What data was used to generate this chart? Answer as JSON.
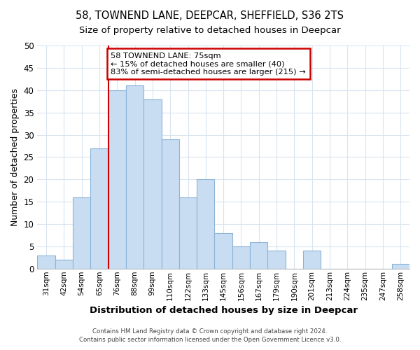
{
  "title": "58, TOWNEND LANE, DEEPCAR, SHEFFIELD, S36 2TS",
  "subtitle": "Size of property relative to detached houses in Deepcar",
  "xlabel": "Distribution of detached houses by size in Deepcar",
  "ylabel": "Number of detached properties",
  "bar_labels": [
    "31sqm",
    "42sqm",
    "54sqm",
    "65sqm",
    "76sqm",
    "88sqm",
    "99sqm",
    "110sqm",
    "122sqm",
    "133sqm",
    "145sqm",
    "156sqm",
    "167sqm",
    "179sqm",
    "190sqm",
    "201sqm",
    "213sqm",
    "224sqm",
    "235sqm",
    "247sqm",
    "258sqm"
  ],
  "bar_values": [
    3,
    2,
    16,
    27,
    40,
    41,
    38,
    29,
    16,
    20,
    8,
    5,
    6,
    4,
    0,
    4,
    0,
    0,
    0,
    0,
    1
  ],
  "bar_color": "#c9ddf2",
  "bar_edge_color": "#8ab4d8",
  "annotation_title": "58 TOWNEND LANE: 75sqm",
  "annotation_line1": "← 15% of detached houses are smaller (40)",
  "annotation_line2": "83% of semi-detached houses are larger (215) →",
  "annotation_box_color": "#ffffff",
  "annotation_box_edge": "#cc0000",
  "vline_color": "#cc0000",
  "vline_x_index": 3.5,
  "ylim": [
    0,
    50
  ],
  "yticks": [
    0,
    5,
    10,
    15,
    20,
    25,
    30,
    35,
    40,
    45,
    50
  ],
  "footer1": "Contains HM Land Registry data © Crown copyright and database right 2024.",
  "footer2": "Contains public sector information licensed under the Open Government Licence v3.0.",
  "grid_color": "#d8e4f0",
  "bg_color": "#ffffff"
}
